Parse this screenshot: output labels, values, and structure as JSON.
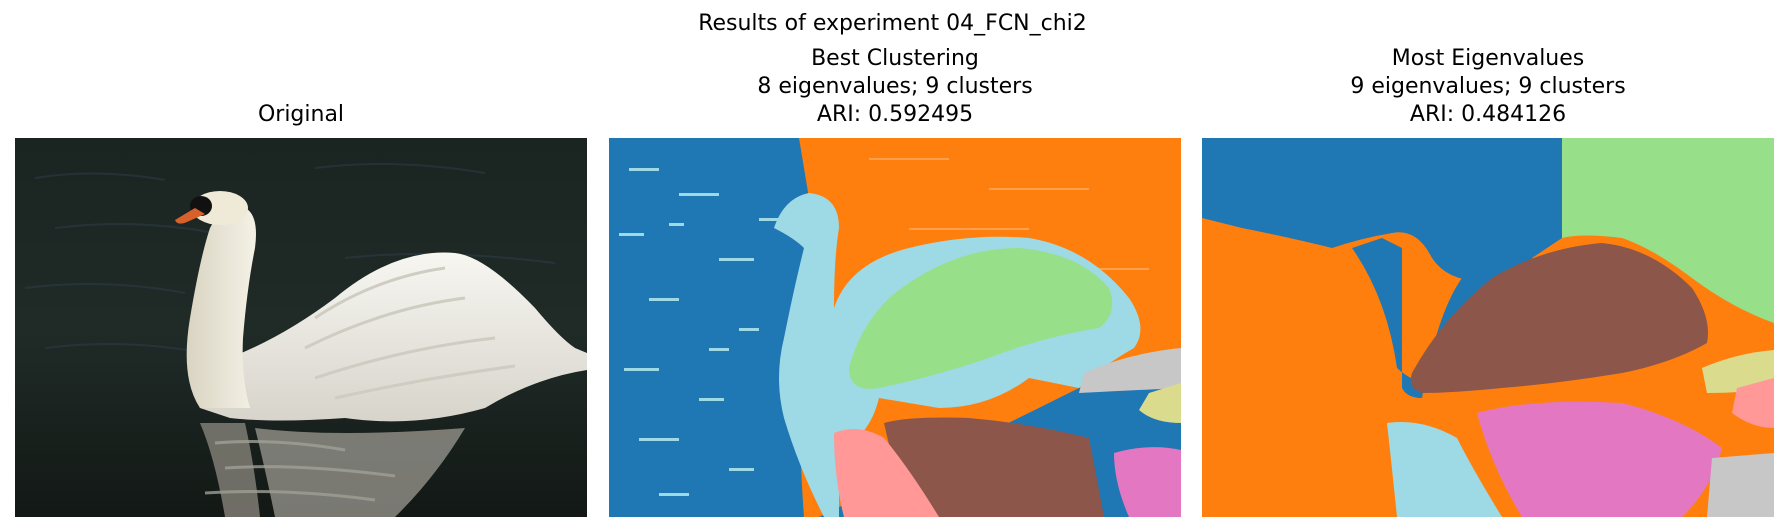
{
  "figure": {
    "suptitle": "Results of experiment 04_FCN_chi2"
  },
  "panels": [
    {
      "title_lines": [
        "Original"
      ],
      "content": "photo"
    },
    {
      "title_lines": [
        "Best Clustering",
        "8 eigenvalues; 9 clusters",
        "ARI: 0.592495"
      ],
      "content": "segmentation"
    },
    {
      "title_lines": [
        "Most Eigenvalues",
        "9 eigenvalues; 9 clusters",
        "ARI: 0.484126"
      ],
      "content": "segmentation"
    }
  ],
  "cluster_colors": {
    "blue": "#1f77b4",
    "orange": "#ff7f0e",
    "light_blue": "#9edae5",
    "light_green": "#98df8a",
    "brown": "#8c564b",
    "pink": "#ff9896",
    "magenta": "#e377c2",
    "gray": "#c7c7c7",
    "khaki": "#dbdb8d"
  }
}
